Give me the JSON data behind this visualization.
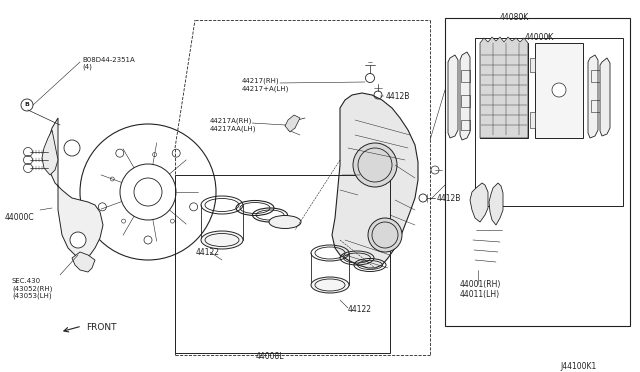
{
  "bg_color": "#ffffff",
  "line_color": "#222222",
  "fig_width": 6.4,
  "fig_height": 3.72,
  "dpi": 100,
  "labels": {
    "bolt": "B08D44-2351A\n(4)",
    "part_c": "44000C",
    "sec430": "SEC.430\n(43052(RH)\n(43053(LH)",
    "p44217": "44217(RH)\n44217+A(LH)",
    "p44217a": "44217A(RH)\n44217AA(LH)",
    "p4412b_top": "4412B",
    "p4412b_bot": "4412B",
    "p44122_left": "44122",
    "p44122_right": "44122",
    "p4400l": "44008L",
    "p44080k": "44080K",
    "p44000k": "44000K",
    "p44001": "44001(RH)\n44011(LH)",
    "front": "FRONT",
    "diagram_id": "J44100K1"
  }
}
